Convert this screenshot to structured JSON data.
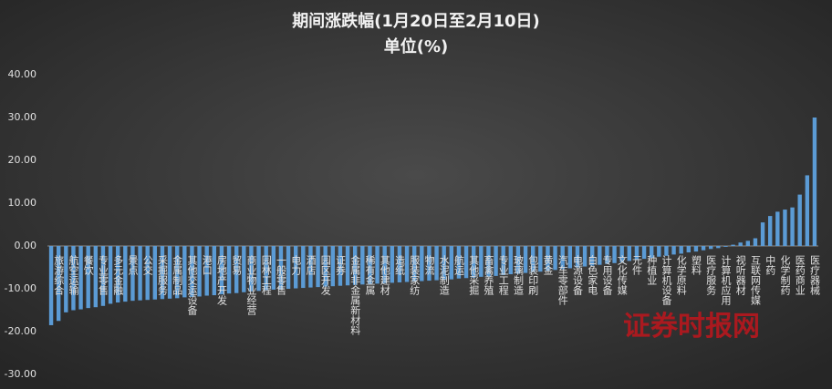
{
  "chart_data": {
    "type": "bar",
    "title": "期间涨跌幅(1月20日至2月10日)",
    "subtitle": "单位(%)",
    "watermark": "证券时报网",
    "color": "#5b9bd5",
    "grid": false,
    "ylim": [
      -30,
      40
    ],
    "yticks": [
      {
        "value": 40,
        "label": "40.00"
      },
      {
        "value": 30,
        "label": "30.00"
      },
      {
        "value": 20,
        "label": "20.00"
      },
      {
        "value": 10,
        "label": "10.00"
      },
      {
        "value": 0,
        "label": "0.00"
      },
      {
        "value": -10,
        "label": "-10.00"
      },
      {
        "value": -20,
        "label": "-20.00"
      },
      {
        "value": -30,
        "label": "-30.00"
      }
    ],
    "categories": [
      null,
      "旅游综合",
      null,
      "航空运输",
      null,
      "餐饮",
      null,
      "专业零售",
      null,
      "多元金融",
      null,
      "景点",
      null,
      "公交",
      null,
      "采掘服务",
      null,
      "金属制品",
      null,
      "其他交运设备",
      null,
      "港口",
      null,
      "房地产开发",
      null,
      "贸易",
      null,
      "商业物业经营",
      null,
      "园林工程",
      null,
      "一般零售",
      null,
      "电力",
      null,
      "酒店",
      null,
      "园区开发",
      null,
      "证券",
      null,
      "金属非金属新材料",
      null,
      "稀有金属",
      null,
      "其他建材",
      null,
      "造纸",
      null,
      "服装家纺",
      null,
      "物流",
      null,
      "水泥制造",
      null,
      "航运",
      null,
      "其他采掘",
      null,
      "畜禽养殖",
      null,
      "专业工程",
      null,
      "玻璃制造",
      null,
      "包装印刷",
      null,
      "黄金",
      null,
      "汽车零部件",
      null,
      "电源设备",
      null,
      "白色家电",
      null,
      "专用设备",
      null,
      "文化传媒",
      null,
      "元件",
      null,
      "种植业",
      null,
      "计算机设备",
      null,
      "化学原料",
      null,
      "塑料",
      null,
      "医疗服务",
      null,
      "计算机应用",
      null,
      "视听器材",
      null,
      "互联网传媒",
      null,
      "中药",
      null,
      "化学制药",
      null,
      "医药商业",
      null,
      "医疗器械"
    ],
    "values": [
      -18.5,
      -17.5,
      -15.5,
      -15,
      -14.8,
      -14.5,
      -14.3,
      -14,
      -13.5,
      -13.2,
      -13,
      -12.8,
      -12.7,
      -12.6,
      -12.5,
      -12.4,
      -12.3,
      -12.2,
      -12,
      -11.9,
      -11.8,
      -11.6,
      -11.5,
      -11.3,
      -11.1,
      -11,
      -10.8,
      -10.6,
      -10.5,
      -10.3,
      -10.2,
      -10.1,
      -10,
      -9.9,
      -9.8,
      -9.7,
      -9.6,
      -9.5,
      -9.4,
      -9.3,
      -9.2,
      -9.1,
      -9,
      -8.9,
      -8.8,
      -8.7,
      -8.6,
      -8.5,
      -8.4,
      -8.3,
      -8.2,
      -8.1,
      -8,
      -7.9,
      -7.8,
      -7.6,
      -7.5,
      -7.4,
      -7.2,
      -7.1,
      -7,
      -6.8,
      -6.6,
      -6.5,
      -6.3,
      -6.1,
      -6,
      -5.8,
      -5.6,
      -5.4,
      -5.2,
      -5,
      -4.8,
      -4.6,
      -4.4,
      -4.2,
      -4,
      -3.8,
      -3.5,
      -3.3,
      -3,
      -2.8,
      -2.5,
      -2.3,
      -2,
      -1.8,
      -1.5,
      -1.3,
      -1,
      -0.7,
      -0.5,
      -0.2,
      0.3,
      0.8,
      1.2,
      1.8,
      5.5,
      7,
      8,
      8.5,
      9,
      12,
      16.5,
      30
    ]
  }
}
